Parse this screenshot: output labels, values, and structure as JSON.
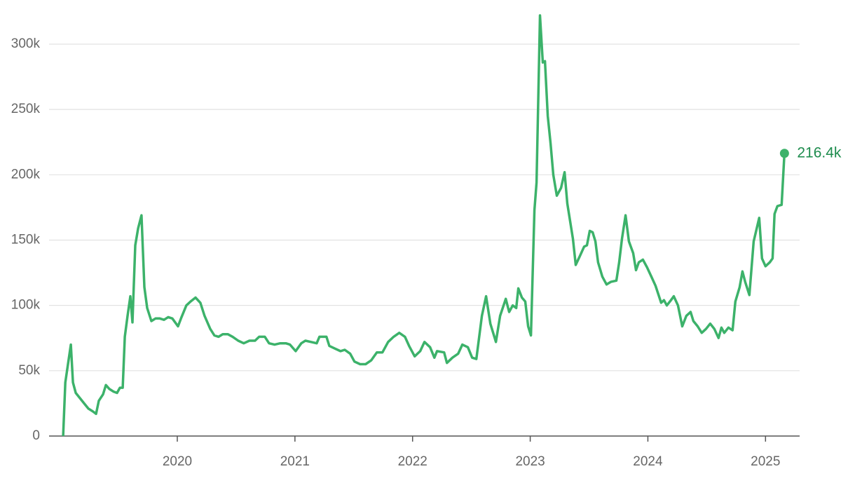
{
  "chart_data": {
    "type": "line",
    "x": [
      2019.03,
      2019.048,
      2019.071,
      2019.095,
      2019.113,
      2019.137,
      2019.173,
      2019.208,
      2019.244,
      2019.28,
      2019.31,
      2019.333,
      2019.369,
      2019.393,
      2019.423,
      2019.458,
      2019.488,
      2019.512,
      2019.536,
      2019.554,
      2019.577,
      2019.601,
      2019.619,
      2019.643,
      2019.667,
      2019.696,
      2019.72,
      2019.744,
      2019.78,
      2019.815,
      2019.851,
      2019.887,
      2019.923,
      2019.958,
      2020.006,
      2020.036,
      2020.077,
      2020.113,
      2020.155,
      2020.196,
      2020.232,
      2020.28,
      2020.315,
      2020.351,
      2020.387,
      2020.429,
      2020.47,
      2020.518,
      2020.565,
      2020.613,
      2020.661,
      2020.696,
      2020.744,
      2020.78,
      2020.827,
      2020.875,
      2020.923,
      2020.958,
      2021.006,
      2021.054,
      2021.089,
      2021.137,
      2021.185,
      2021.208,
      2021.268,
      2021.292,
      2021.339,
      2021.387,
      2021.423,
      2021.47,
      2021.506,
      2021.554,
      2021.601,
      2021.649,
      2021.696,
      2021.744,
      2021.792,
      2021.839,
      2021.887,
      2021.935,
      2021.97,
      2022.018,
      2022.065,
      2022.101,
      2022.149,
      2022.185,
      2022.208,
      2022.268,
      2022.292,
      2022.339,
      2022.387,
      2022.423,
      2022.47,
      2022.506,
      2022.542,
      2022.589,
      2022.625,
      2022.661,
      2022.708,
      2022.744,
      2022.792,
      2022.821,
      2022.851,
      2022.881,
      2022.899,
      2022.929,
      2022.958,
      2022.982,
      2023.006,
      2023.036,
      2023.054,
      2023.083,
      2023.107,
      2023.125,
      2023.149,
      2023.173,
      2023.196,
      2023.226,
      2023.262,
      2023.292,
      2023.315,
      2023.363,
      2023.387,
      2023.423,
      2023.458,
      2023.482,
      2023.506,
      2023.53,
      2023.554,
      2023.577,
      2023.613,
      2023.649,
      2023.685,
      2023.732,
      2023.756,
      2023.78,
      2023.81,
      2023.839,
      2023.875,
      2023.899,
      2023.923,
      2023.958,
      2023.994,
      2024.03,
      2024.065,
      2024.113,
      2024.137,
      2024.161,
      2024.196,
      2024.22,
      2024.256,
      2024.292,
      2024.327,
      2024.363,
      2024.387,
      2024.423,
      2024.458,
      2024.494,
      2024.53,
      2024.565,
      2024.601,
      2024.625,
      2024.649,
      2024.685,
      2024.72,
      2024.744,
      2024.78,
      2024.804,
      2024.827,
      2024.863,
      2024.899,
      2024.946,
      2024.97,
      2025.0,
      2025.036,
      2025.06,
      2025.077,
      2025.101,
      2025.137,
      2025.161
    ],
    "values": [
      0,
      41000,
      55000,
      70000,
      41000,
      33000,
      29000,
      25000,
      21000,
      19000,
      17000,
      27000,
      32000,
      39000,
      36000,
      34000,
      33000,
      37000,
      37000,
      76000,
      92000,
      107000,
      87000,
      146000,
      159000,
      169000,
      114000,
      98000,
      88000,
      90000,
      90000,
      89000,
      91000,
      90000,
      84000,
      91000,
      100000,
      103000,
      106000,
      102000,
      92000,
      82000,
      77000,
      76000,
      78000,
      78000,
      76000,
      73000,
      71000,
      73000,
      73000,
      76000,
      76000,
      71000,
      70000,
      71000,
      71000,
      70000,
      65000,
      71000,
      73000,
      72000,
      71000,
      76000,
      76000,
      69000,
      67000,
      65000,
      66000,
      63000,
      57000,
      55000,
      55000,
      58000,
      64000,
      64000,
      72000,
      76000,
      79000,
      76000,
      69000,
      61000,
      65000,
      72000,
      68000,
      60000,
      65000,
      64000,
      56000,
      60000,
      63000,
      70000,
      68000,
      60000,
      59000,
      92000,
      107000,
      86000,
      72000,
      92000,
      105000,
      95000,
      100000,
      98000,
      113000,
      106000,
      103000,
      84000,
      77000,
      173000,
      194000,
      322000,
      286000,
      287000,
      245000,
      224000,
      200000,
      184000,
      190000,
      202000,
      178000,
      151000,
      131000,
      138000,
      145000,
      146000,
      157000,
      156000,
      149000,
      133000,
      122000,
      116000,
      118000,
      119000,
      133000,
      151000,
      169000,
      149000,
      140000,
      127000,
      133000,
      135000,
      129000,
      122000,
      115000,
      102000,
      104000,
      100000,
      104000,
      107000,
      100000,
      84000,
      92000,
      95000,
      88000,
      84000,
      79000,
      82000,
      86000,
      82000,
      75000,
      83000,
      79000,
      83000,
      81000,
      103000,
      114000,
      126000,
      118000,
      108000,
      149000,
      167000,
      136000,
      130000,
      133000,
      136000,
      170000,
      176000,
      177000,
      216400
    ],
    "end_label": "216.4k",
    "color": "#3cb26a",
    "label_color": "#1e8c4e",
    "xlim": [
      2018.91,
      2025.29
    ],
    "xticks": [
      2020,
      2021,
      2022,
      2023,
      2024,
      2025
    ],
    "ylim": [
      0,
      325000
    ],
    "yticks": [
      0,
      {
        "value": 50000,
        "label": "50k"
      },
      {
        "value": 100000,
        "label": "100k"
      },
      {
        "value": 150000,
        "label": "150k"
      },
      {
        "value": 200000,
        "label": "200k"
      },
      {
        "value": 250000,
        "label": "250k"
      },
      {
        "value": 300000,
        "label": "300k"
      }
    ],
    "grid": true
  }
}
